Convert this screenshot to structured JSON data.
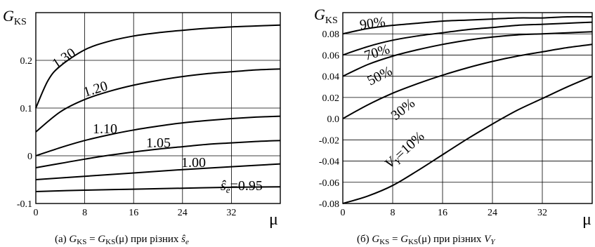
{
  "chart_data": [
    {
      "type": "line",
      "ylabel": "G_KS",
      "xlabel": "μ",
      "x_ticks": [
        "0",
        "8",
        "16",
        "24",
        "32"
      ],
      "y_ticks": [
        "-0.1",
        "0",
        "0.1",
        "0.2"
      ],
      "xlim": [
        0,
        40
      ],
      "ylim": [
        -0.1,
        0.3
      ],
      "grid": true,
      "caption": "(a)  G_KS = G_KS(μ)  при різних  ŝ_e",
      "series": [
        {
          "name": "1.30",
          "x": [
            0,
            2,
            4,
            8,
            12,
            16,
            20,
            24,
            28,
            32,
            36,
            40
          ],
          "values": [
            0.1,
            0.158,
            0.188,
            0.222,
            0.24,
            0.251,
            0.258,
            0.263,
            0.267,
            0.27,
            0.272,
            0.274
          ]
        },
        {
          "name": "1.20",
          "x": [
            0,
            4,
            8,
            12,
            16,
            20,
            24,
            28,
            32,
            36,
            40
          ],
          "values": [
            0.05,
            0.092,
            0.118,
            0.135,
            0.148,
            0.158,
            0.166,
            0.172,
            0.176,
            0.18,
            0.182
          ]
        },
        {
          "name": "1.10",
          "x": [
            0,
            4,
            8,
            12,
            16,
            20,
            24,
            28,
            32,
            36,
            40
          ],
          "values": [
            0.0,
            0.017,
            0.032,
            0.044,
            0.054,
            0.062,
            0.069,
            0.074,
            0.078,
            0.081,
            0.083
          ]
        },
        {
          "name": "1.05",
          "x": [
            0,
            4,
            8,
            12,
            16,
            20,
            24,
            28,
            32,
            36,
            40
          ],
          "values": [
            -0.025,
            -0.016,
            -0.007,
            0.001,
            0.008,
            0.014,
            0.019,
            0.024,
            0.027,
            0.03,
            0.032
          ]
        },
        {
          "name": "1.00",
          "x": [
            0,
            8,
            16,
            24,
            32,
            40
          ],
          "values": [
            -0.05,
            -0.043,
            -0.036,
            -0.029,
            -0.023,
            -0.017
          ]
        },
        {
          "name": "ŝe=0.95",
          "x": [
            0,
            8,
            16,
            24,
            32,
            40
          ],
          "values": [
            -0.075,
            -0.072,
            -0.07,
            -0.068,
            -0.066,
            -0.065
          ]
        }
      ]
    },
    {
      "type": "line",
      "ylabel": "G_KS",
      "xlabel": "μ",
      "x_ticks": [
        "0",
        "8",
        "16",
        "24",
        "32"
      ],
      "y_ticks": [
        "-0.08",
        "-0.06",
        "-0.04",
        "-0.02",
        "0.0",
        "0.02",
        "0.04",
        "0.06",
        "0.08"
      ],
      "xlim": [
        0,
        40
      ],
      "ylim": [
        -0.08,
        0.1
      ],
      "grid": true,
      "caption": "(б)  G_KS = G_KS(μ)  при різних  V_Y",
      "series": [
        {
          "name": "90%",
          "x": [
            0,
            4,
            8,
            12,
            16,
            20,
            24,
            28,
            32,
            36,
            40
          ],
          "values": [
            0.08,
            0.085,
            0.088,
            0.09,
            0.092,
            0.093,
            0.094,
            0.095,
            0.095,
            0.096,
            0.096
          ]
        },
        {
          "name": "70%",
          "x": [
            0,
            4,
            8,
            12,
            16,
            20,
            24,
            28,
            32,
            36,
            40
          ],
          "values": [
            0.06,
            0.068,
            0.074,
            0.078,
            0.081,
            0.084,
            0.086,
            0.088,
            0.089,
            0.09,
            0.091
          ]
        },
        {
          "name": "50%",
          "x": [
            0,
            4,
            8,
            12,
            16,
            20,
            24,
            28,
            32,
            36,
            40
          ],
          "values": [
            0.04,
            0.051,
            0.059,
            0.065,
            0.07,
            0.074,
            0.077,
            0.079,
            0.08,
            0.081,
            0.082
          ]
        },
        {
          "name": "30%",
          "x": [
            0,
            4,
            8,
            12,
            16,
            20,
            24,
            28,
            32,
            36,
            40
          ],
          "values": [
            0.0,
            0.013,
            0.024,
            0.033,
            0.041,
            0.048,
            0.054,
            0.059,
            0.063,
            0.067,
            0.07
          ]
        },
        {
          "name": "V_Y=10%",
          "x": [
            0,
            4,
            8,
            12,
            16,
            20,
            24,
            28,
            32,
            36,
            40
          ],
          "values": [
            -0.08,
            -0.073,
            -0.063,
            -0.049,
            -0.034,
            -0.019,
            -0.005,
            0.008,
            0.019,
            0.03,
            0.04
          ]
        }
      ]
    }
  ]
}
